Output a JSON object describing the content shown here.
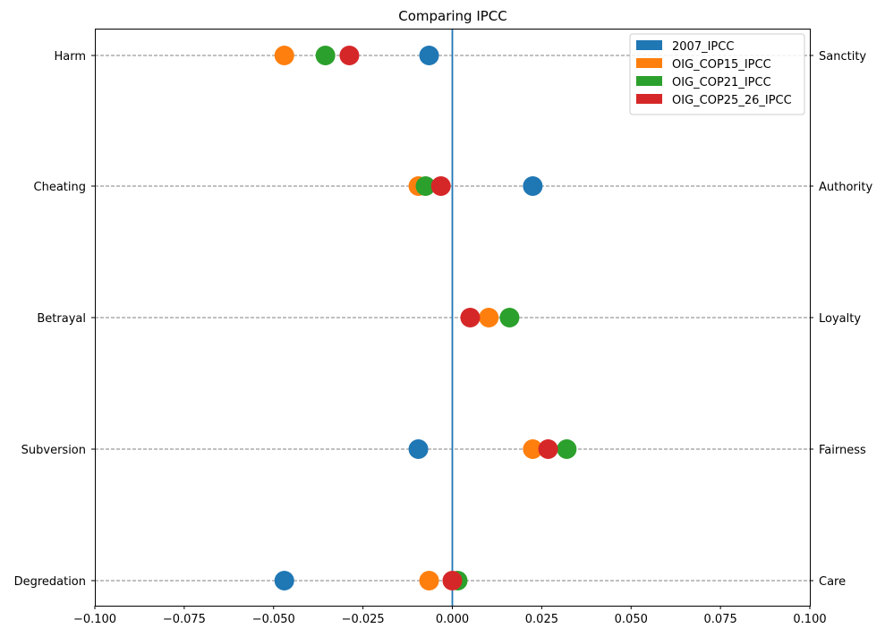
{
  "chart_data": {
    "type": "scatter",
    "title": "Comparing IPCC",
    "xlabel": "",
    "ylabel": "",
    "xlim": [
      -0.1,
      0.1
    ],
    "x_ticks": [
      -0.1,
      -0.075,
      -0.05,
      -0.025,
      0.0,
      0.025,
      0.05,
      0.075,
      0.1
    ],
    "x_tick_labels": [
      "−0.100",
      "−0.075",
      "−0.050",
      "−0.025",
      "0.000",
      "0.025",
      "0.050",
      "0.075",
      "0.100"
    ],
    "categories_left": [
      "Harm",
      "Cheating",
      "Betrayal",
      "Subversion",
      "Degredation"
    ],
    "categories_right": [
      "Sanctity",
      "Authority",
      "Loyalty",
      "Fairness",
      "Care"
    ],
    "grid": "horizontal dashed at each category",
    "zero_line": true,
    "legend_position": "top-right",
    "series": [
      {
        "name": "2007_IPCC",
        "color": "#1f77b4",
        "values": [
          -0.0065,
          0.0225,
          null,
          -0.0095,
          -0.047
        ]
      },
      {
        "name": "OIG_COP15_IPCC",
        "color": "#ff7f0e",
        "values": [
          -0.047,
          -0.0095,
          0.0102,
          0.0225,
          -0.0065
        ]
      },
      {
        "name": "OIG_COP21_IPCC",
        "color": "#2ca02c",
        "values": [
          -0.0355,
          -0.0075,
          0.016,
          0.032,
          0.0015
        ]
      },
      {
        "name": "OIG_COP25_26_IPCC",
        "color": "#d62728",
        "values": [
          -0.0288,
          -0.0032,
          0.005,
          0.0268,
          0.0
        ]
      }
    ]
  }
}
